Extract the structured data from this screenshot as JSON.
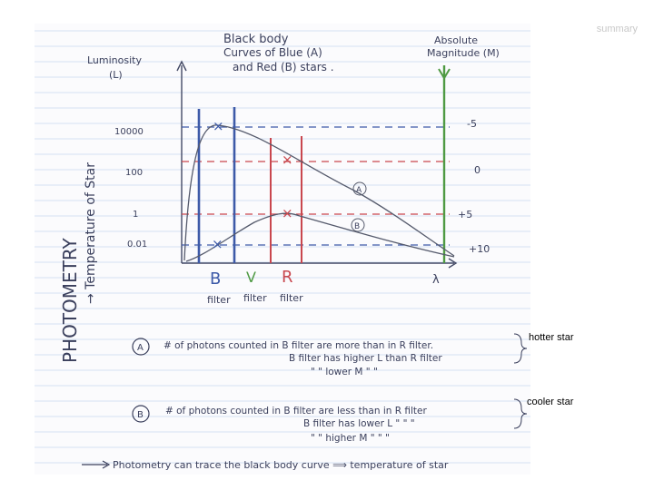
{
  "header": {
    "summary": "summary"
  },
  "diagram": {
    "title_lines": [
      "Black body",
      "Curves of Blue (A)",
      "and Red (B) stars ."
    ],
    "left_axis": {
      "label": "Luminosity",
      "symbol": "(L)",
      "ticks": [
        "10000",
        "100",
        "1",
        "0.01"
      ]
    },
    "right_axis": {
      "label_lines": [
        "Absolute",
        "Magnitude (M)"
      ],
      "ticks": [
        "-5",
        "0",
        "+5",
        "+10"
      ]
    },
    "x_axis_symbol": "λ",
    "curve_labels": [
      "A",
      "B"
    ],
    "filters": [
      {
        "letter": "B",
        "word": "filter",
        "color": "#3d5aa8"
      },
      {
        "letter": "V",
        "word": "filter",
        "color": "#4f9a43"
      },
      {
        "letter": "R",
        "word": "filter",
        "color": "#c9474e"
      }
    ],
    "side_title": "PHOTOMETRY",
    "side_subtitle": "→ Temperature of Star",
    "notes": [
      {
        "marker": "A",
        "lines": [
          "# of photons counted in B filter are more than in R filter.",
          "B filter has higher L than R filter",
          "\"    \"   lower M     \"      \""
        ]
      },
      {
        "marker": "B",
        "lines": [
          "# of photons counted in B filter are less than in R filter",
          "B filter has lower L   \"    \"    \"",
          "\"    \"   higher M   \"    \"    \""
        ]
      }
    ],
    "footer": "Photometry can trace the black body curve ⟹ temperature of star"
  },
  "annotations": {
    "hotter": "hotter star",
    "cooler": "cooler star"
  },
  "colors": {
    "blue_filter": "#3d5aa8",
    "red_filter": "#c9474e",
    "green_filter": "#4f9a43",
    "ink": "#3a3f5c",
    "paper_line": "#c9d9ee"
  }
}
